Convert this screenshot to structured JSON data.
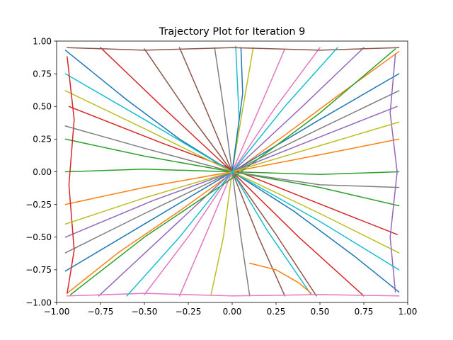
{
  "chart_data": {
    "type": "line",
    "title": "Trajectory Plot for Iteration 9",
    "xlabel": "",
    "ylabel": "",
    "xlim": [
      -1.0,
      1.0
    ],
    "ylim": [
      -1.0,
      1.0
    ],
    "x_ticks": [
      -1.0,
      -0.75,
      -0.5,
      -0.25,
      0.0,
      0.25,
      0.5,
      0.75,
      1.0
    ],
    "x_tick_labels": [
      "−1.00",
      "−0.75",
      "−0.50",
      "−0.25",
      "0.00",
      "0.25",
      "0.50",
      "0.75",
      "1.00"
    ],
    "y_ticks": [
      -1.0,
      -0.75,
      -0.5,
      -0.25,
      0.0,
      0.25,
      0.5,
      0.75,
      1.0
    ],
    "y_tick_labels": [
      "−1.00",
      "−0.75",
      "−0.50",
      "−0.25",
      "0.00",
      "0.25",
      "0.50",
      "0.75",
      "1.00"
    ],
    "grid": false,
    "legend": "none",
    "colors": [
      "#1f77b4",
      "#ff7f0e",
      "#2ca02c",
      "#d62728",
      "#9467bd",
      "#8c564b",
      "#e377c2",
      "#7f7f7f",
      "#bcbd22",
      "#17becf"
    ],
    "series": [
      {
        "points": [
          [
            -0.95,
            0.93
          ],
          [
            -0.6,
            0.55
          ],
          [
            -0.3,
            0.25
          ],
          [
            0.0,
            0.0
          ],
          [
            0.35,
            -0.3
          ],
          [
            0.7,
            -0.65
          ],
          [
            0.95,
            -0.92
          ]
        ]
      },
      {
        "points": [
          [
            0.95,
            0.92
          ],
          [
            0.6,
            0.58
          ],
          [
            0.3,
            0.28
          ],
          [
            0.02,
            0.01
          ],
          [
            -0.3,
            -0.3
          ],
          [
            -0.65,
            -0.62
          ],
          [
            -0.94,
            -0.93
          ]
        ]
      },
      {
        "points": [
          [
            -0.95,
            0.0
          ],
          [
            -0.5,
            0.02
          ],
          [
            0.0,
            0.0
          ],
          [
            0.5,
            -0.02
          ],
          [
            0.95,
            0.0
          ]
        ]
      },
      {
        "points": [
          [
            -0.93,
            0.5
          ],
          [
            -0.4,
            0.22
          ],
          [
            0.0,
            0.02
          ],
          [
            0.45,
            -0.22
          ],
          [
            0.94,
            -0.48
          ]
        ]
      },
      {
        "points": [
          [
            0.94,
            0.5
          ],
          [
            0.45,
            0.24
          ],
          [
            0.0,
            0.0
          ],
          [
            -0.45,
            -0.22
          ],
          [
            -0.95,
            -0.5
          ]
        ]
      },
      {
        "points": [
          [
            -0.5,
            0.94
          ],
          [
            -0.25,
            0.45
          ],
          [
            0.0,
            0.0
          ],
          [
            0.25,
            -0.48
          ],
          [
            0.48,
            -0.95
          ]
        ]
      },
      {
        "points": [
          [
            0.5,
            0.95
          ],
          [
            0.24,
            0.48
          ],
          [
            0.0,
            0.0
          ],
          [
            -0.24,
            -0.48
          ],
          [
            -0.5,
            -0.94
          ]
        ]
      },
      {
        "points": [
          [
            -0.1,
            0.95
          ],
          [
            -0.05,
            0.5
          ],
          [
            0.0,
            0.0
          ],
          [
            0.05,
            -0.5
          ],
          [
            0.1,
            -0.95
          ]
        ]
      },
      {
        "points": [
          [
            0.12,
            0.95
          ],
          [
            0.06,
            0.48
          ],
          [
            0.0,
            0.0
          ],
          [
            -0.05,
            -0.5
          ],
          [
            -0.12,
            -0.94
          ]
        ]
      },
      {
        "points": [
          [
            -0.95,
            0.75
          ],
          [
            -0.5,
            0.4
          ],
          [
            0.0,
            0.0
          ],
          [
            0.5,
            -0.38
          ],
          [
            0.95,
            -0.75
          ]
        ]
      },
      {
        "points": [
          [
            0.95,
            0.75
          ],
          [
            0.5,
            0.4
          ],
          [
            0.0,
            0.0
          ],
          [
            -0.5,
            -0.4
          ],
          [
            -0.95,
            -0.76
          ]
        ]
      },
      {
        "points": [
          [
            -0.95,
            -0.25
          ],
          [
            -0.5,
            -0.12
          ],
          [
            0.0,
            0.0
          ],
          [
            0.5,
            0.13
          ],
          [
            0.95,
            0.25
          ]
        ]
      },
      {
        "points": [
          [
            -0.95,
            0.25
          ],
          [
            -0.5,
            0.12
          ],
          [
            0.0,
            0.0
          ],
          [
            0.5,
            -0.12
          ],
          [
            0.95,
            -0.26
          ]
        ]
      },
      {
        "points": [
          [
            -0.75,
            0.95
          ],
          [
            -0.4,
            0.5
          ],
          [
            0.0,
            0.0
          ],
          [
            0.38,
            -0.5
          ],
          [
            0.75,
            -0.95
          ]
        ]
      },
      {
        "points": [
          [
            0.75,
            0.95
          ],
          [
            0.4,
            0.5
          ],
          [
            0.0,
            0.0
          ],
          [
            -0.4,
            -0.5
          ],
          [
            -0.76,
            -0.95
          ]
        ]
      },
      {
        "points": [
          [
            -0.3,
            0.95
          ],
          [
            -0.15,
            0.48
          ],
          [
            0.0,
            0.0
          ],
          [
            0.15,
            -0.5
          ],
          [
            0.3,
            -0.95
          ]
        ]
      },
      {
        "points": [
          [
            0.3,
            0.94
          ],
          [
            0.15,
            0.47
          ],
          [
            0.0,
            0.0
          ],
          [
            -0.15,
            -0.48
          ],
          [
            -0.3,
            -0.95
          ]
        ]
      },
      {
        "points": [
          [
            -0.95,
            -0.62
          ],
          [
            -0.5,
            -0.32
          ],
          [
            0.0,
            0.0
          ],
          [
            0.5,
            0.33
          ],
          [
            0.95,
            0.62
          ]
        ]
      },
      {
        "points": [
          [
            -0.95,
            0.62
          ],
          [
            -0.5,
            0.33
          ],
          [
            0.0,
            0.0
          ],
          [
            0.5,
            -0.32
          ],
          [
            0.95,
            -0.62
          ]
        ]
      },
      {
        "points": [
          [
            0.02,
            0.96
          ],
          [
            0.04,
            0.4
          ],
          [
            0.0,
            0.0
          ],
          [
            0.2,
            -0.45
          ],
          [
            0.45,
            -0.94
          ]
        ]
      },
      {
        "points": [
          [
            0.05,
            0.95
          ],
          [
            0.06,
            0.6
          ],
          [
            0.02,
            0.2
          ],
          [
            0.0,
            0.0
          ]
        ]
      },
      {
        "points": [
          [
            0.1,
            -0.7
          ],
          [
            0.25,
            -0.75
          ],
          [
            0.38,
            -0.85
          ],
          [
            0.45,
            -0.93
          ]
        ]
      },
      {
        "points": [
          [
            -0.92,
            -0.94
          ],
          [
            -0.5,
            -0.5
          ],
          [
            0.0,
            -0.05
          ],
          [
            0.5,
            0.45
          ],
          [
            0.93,
            0.94
          ]
        ]
      },
      {
        "points": [
          [
            -0.94,
            0.88
          ],
          [
            -0.9,
            0.4
          ],
          [
            -0.93,
            -0.1
          ],
          [
            -0.9,
            -0.6
          ],
          [
            -0.94,
            -0.93
          ]
        ]
      },
      {
        "points": [
          [
            0.93,
            0.9
          ],
          [
            0.9,
            0.45
          ],
          [
            0.94,
            0.0
          ],
          [
            0.9,
            -0.5
          ],
          [
            0.93,
            -0.92
          ]
        ]
      },
      {
        "points": [
          [
            -0.94,
            0.95
          ],
          [
            -0.5,
            0.93
          ],
          [
            0.0,
            0.95
          ],
          [
            0.5,
            0.93
          ],
          [
            0.95,
            0.95
          ]
        ]
      },
      {
        "points": [
          [
            -0.94,
            -0.95
          ],
          [
            -0.5,
            -0.93
          ],
          [
            0.0,
            -0.95
          ],
          [
            0.5,
            -0.94
          ],
          [
            0.95,
            -0.95
          ]
        ]
      },
      {
        "points": [
          [
            -0.95,
            0.35
          ],
          [
            -0.5,
            0.18
          ],
          [
            0.0,
            0.0
          ],
          [
            0.5,
            -0.1
          ],
          [
            0.95,
            -0.12
          ]
        ]
      },
      {
        "points": [
          [
            -0.95,
            -0.4
          ],
          [
            -0.5,
            -0.2
          ],
          [
            0.0,
            0.0
          ],
          [
            0.5,
            0.2
          ],
          [
            0.95,
            0.38
          ]
        ]
      },
      {
        "points": [
          [
            -0.6,
            -0.95
          ],
          [
            -0.3,
            -0.5
          ],
          [
            0.0,
            0.0
          ],
          [
            0.3,
            0.5
          ],
          [
            0.6,
            0.95
          ]
        ]
      }
    ]
  }
}
